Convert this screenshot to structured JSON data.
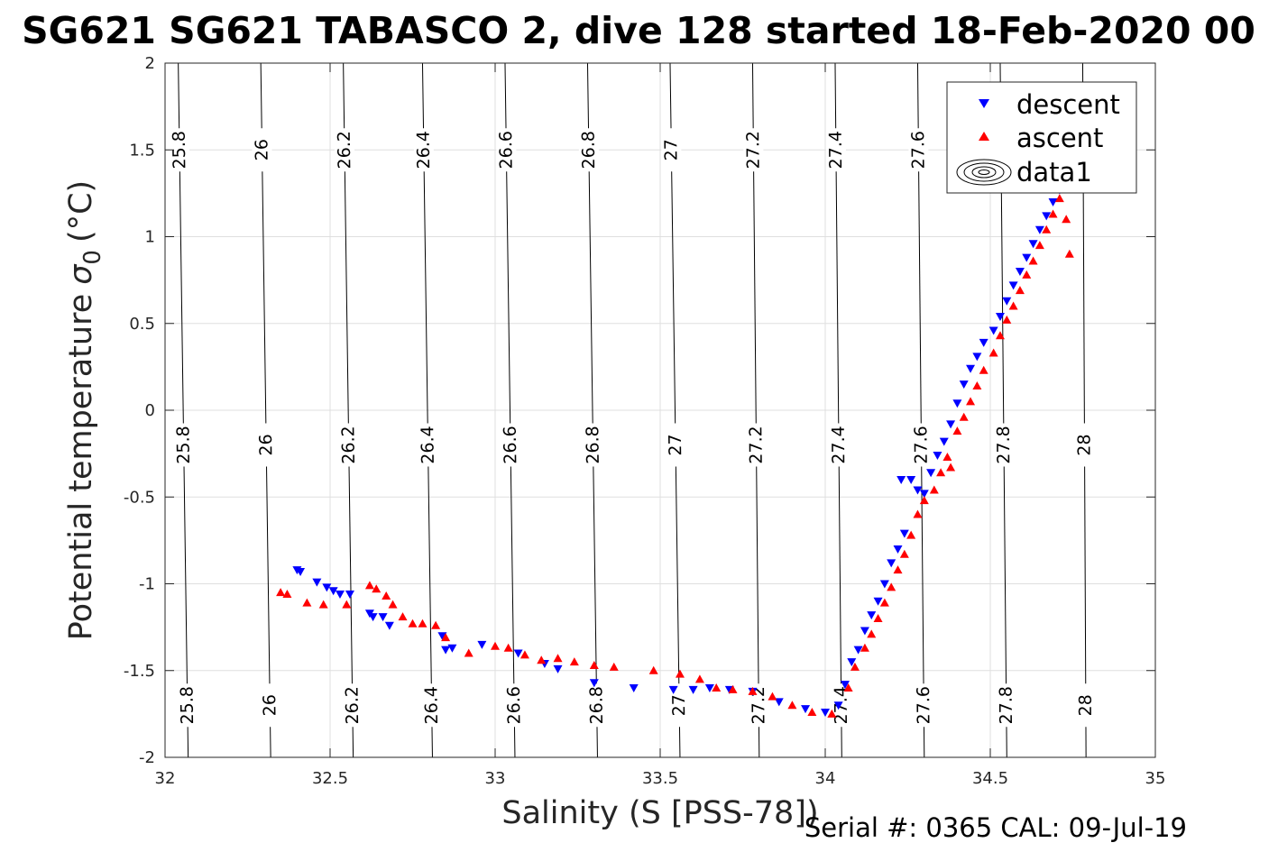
{
  "chart_data": {
    "type": "scatter",
    "title": "SG621 SG621 TABASCO 2, dive 128 started 18-Feb-2020 00",
    "xlabel": "Salinity (S [PSS-78])",
    "ylabel": "Potential temperature",
    "ylabel_symbol": "σ",
    "ylabel_subscript": "0",
    "ylabel_unit": "(°C)",
    "xlim": [
      32,
      35
    ],
    "ylim": [
      -2,
      2
    ],
    "xticks": [
      32,
      32.5,
      33,
      33.5,
      34,
      34.5,
      35
    ],
    "xtick_labels": [
      "32",
      "32.5",
      "33",
      "33.5",
      "34",
      "34.5",
      "35"
    ],
    "yticks": [
      -2,
      -1.5,
      -1,
      -0.5,
      0,
      0.5,
      1,
      1.5,
      2
    ],
    "ytick_labels": [
      "-2",
      "-1.5",
      "-1",
      "-0.5",
      "0",
      "0.5",
      "1",
      "1.5",
      "2"
    ],
    "grid": true,
    "legend_position": "top-right",
    "footer": "Serial #: 0365  CAL: 09-Jul-19",
    "density_contours": [
      {
        "label": "25.8",
        "s_at_2": 32.04,
        "s_at_minus2": 32.07
      },
      {
        "label": "26",
        "s_at_2": 32.29,
        "s_at_minus2": 32.32
      },
      {
        "label": "26.2",
        "s_at_2": 32.54,
        "s_at_minus2": 32.57
      },
      {
        "label": "26.4",
        "s_at_2": 32.78,
        "s_at_minus2": 32.81
      },
      {
        "label": "26.6",
        "s_at_2": 33.03,
        "s_at_minus2": 33.06
      },
      {
        "label": "26.8",
        "s_at_2": 33.28,
        "s_at_minus2": 33.31
      },
      {
        "label": "27",
        "s_at_2": 33.53,
        "s_at_minus2": 33.56
      },
      {
        "label": "27.2",
        "s_at_2": 33.78,
        "s_at_minus2": 33.8
      },
      {
        "label": "27.4",
        "s_at_2": 34.03,
        "s_at_minus2": 34.05
      },
      {
        "label": "27.6",
        "s_at_2": 34.28,
        "s_at_minus2": 34.3
      },
      {
        "label": "27.8",
        "s_at_2": 34.53,
        "s_at_minus2": 34.55
      },
      {
        "label": "28",
        "s_at_2": 34.78,
        "s_at_minus2": 34.79
      }
    ],
    "series": [
      {
        "name": "descent",
        "marker": "triangle-down",
        "color": "#0000ff",
        "points": [
          [
            32.4,
            -0.92
          ],
          [
            32.41,
            -0.93
          ],
          [
            32.46,
            -0.99
          ],
          [
            32.49,
            -1.02
          ],
          [
            32.51,
            -1.04
          ],
          [
            32.53,
            -1.06
          ],
          [
            32.56,
            -1.06
          ],
          [
            32.62,
            -1.17
          ],
          [
            32.63,
            -1.19
          ],
          [
            32.66,
            -1.19
          ],
          [
            32.68,
            -1.24
          ],
          [
            32.84,
            -1.3
          ],
          [
            32.87,
            -1.37
          ],
          [
            32.85,
            -1.38
          ],
          [
            32.96,
            -1.35
          ],
          [
            33.07,
            -1.4
          ],
          [
            33.15,
            -1.46
          ],
          [
            33.19,
            -1.49
          ],
          [
            33.3,
            -1.57
          ],
          [
            33.42,
            -1.6
          ],
          [
            33.54,
            -1.61
          ],
          [
            33.6,
            -1.61
          ],
          [
            33.65,
            -1.6
          ],
          [
            33.71,
            -1.61
          ],
          [
            33.78,
            -1.62
          ],
          [
            33.86,
            -1.68
          ],
          [
            33.94,
            -1.72
          ],
          [
            34.0,
            -1.74
          ],
          [
            34.04,
            -1.7
          ],
          [
            34.06,
            -1.58
          ],
          [
            34.08,
            -1.45
          ],
          [
            34.1,
            -1.38
          ],
          [
            34.12,
            -1.27
          ],
          [
            34.14,
            -1.18
          ],
          [
            34.16,
            -1.1
          ],
          [
            34.18,
            -1.0
          ],
          [
            34.2,
            -0.88
          ],
          [
            34.22,
            -0.8
          ],
          [
            34.24,
            -0.71
          ],
          [
            34.23,
            -0.4
          ],
          [
            34.26,
            -0.4
          ],
          [
            34.28,
            -0.46
          ],
          [
            34.3,
            -0.48
          ],
          [
            34.32,
            -0.36
          ],
          [
            34.34,
            -0.26
          ],
          [
            34.36,
            -0.18
          ],
          [
            34.38,
            -0.08
          ],
          [
            34.4,
            0.04
          ],
          [
            34.42,
            0.15
          ],
          [
            34.44,
            0.24
          ],
          [
            34.46,
            0.31
          ],
          [
            34.48,
            0.39
          ],
          [
            34.51,
            0.46
          ],
          [
            34.53,
            0.54
          ],
          [
            34.55,
            0.63
          ],
          [
            34.57,
            0.72
          ],
          [
            34.59,
            0.8
          ],
          [
            34.61,
            0.88
          ],
          [
            34.63,
            0.96
          ],
          [
            34.65,
            1.04
          ],
          [
            34.67,
            1.12
          ],
          [
            34.69,
            1.2
          ],
          [
            34.71,
            1.27
          ]
        ]
      },
      {
        "name": "ascent",
        "marker": "triangle-up",
        "color": "#ff0000",
        "points": [
          [
            32.35,
            -1.05
          ],
          [
            32.37,
            -1.06
          ],
          [
            32.43,
            -1.11
          ],
          [
            32.48,
            -1.12
          ],
          [
            32.55,
            -1.12
          ],
          [
            32.62,
            -1.01
          ],
          [
            32.64,
            -1.03
          ],
          [
            32.67,
            -1.07
          ],
          [
            32.69,
            -1.12
          ],
          [
            32.72,
            -1.19
          ],
          [
            32.75,
            -1.23
          ],
          [
            32.78,
            -1.23
          ],
          [
            32.82,
            -1.24
          ],
          [
            32.85,
            -1.31
          ],
          [
            32.92,
            -1.4
          ],
          [
            33.0,
            -1.36
          ],
          [
            33.04,
            -1.37
          ],
          [
            33.09,
            -1.41
          ],
          [
            33.14,
            -1.44
          ],
          [
            33.19,
            -1.43
          ],
          [
            33.24,
            -1.45
          ],
          [
            33.3,
            -1.47
          ],
          [
            33.36,
            -1.48
          ],
          [
            33.48,
            -1.5
          ],
          [
            33.56,
            -1.52
          ],
          [
            33.62,
            -1.55
          ],
          [
            33.67,
            -1.6
          ],
          [
            33.72,
            -1.61
          ],
          [
            33.78,
            -1.62
          ],
          [
            33.84,
            -1.65
          ],
          [
            33.9,
            -1.7
          ],
          [
            33.96,
            -1.74
          ],
          [
            34.02,
            -1.75
          ],
          [
            34.07,
            -1.6
          ],
          [
            34.09,
            -1.48
          ],
          [
            34.12,
            -1.37
          ],
          [
            34.14,
            -1.29
          ],
          [
            34.16,
            -1.2
          ],
          [
            34.18,
            -1.11
          ],
          [
            34.2,
            -1.02
          ],
          [
            34.22,
            -0.92
          ],
          [
            34.24,
            -0.83
          ],
          [
            34.26,
            -0.72
          ],
          [
            34.28,
            -0.6
          ],
          [
            34.3,
            -0.52
          ],
          [
            34.33,
            -0.46
          ],
          [
            34.35,
            -0.36
          ],
          [
            34.37,
            -0.27
          ],
          [
            34.38,
            -0.33
          ],
          [
            34.4,
            -0.12
          ],
          [
            34.42,
            -0.04
          ],
          [
            34.44,
            0.05
          ],
          [
            34.46,
            0.14
          ],
          [
            34.48,
            0.23
          ],
          [
            34.51,
            0.33
          ],
          [
            34.53,
            0.43
          ],
          [
            34.55,
            0.52
          ],
          [
            34.57,
            0.6
          ],
          [
            34.59,
            0.69
          ],
          [
            34.61,
            0.78
          ],
          [
            34.63,
            0.86
          ],
          [
            34.65,
            0.95
          ],
          [
            34.67,
            1.04
          ],
          [
            34.69,
            1.13
          ],
          [
            34.71,
            1.22
          ],
          [
            34.73,
            1.3
          ],
          [
            34.73,
            1.1
          ],
          [
            34.74,
            0.9
          ]
        ]
      }
    ],
    "legend": {
      "entries": [
        "descent",
        "ascent",
        "data1"
      ]
    }
  }
}
